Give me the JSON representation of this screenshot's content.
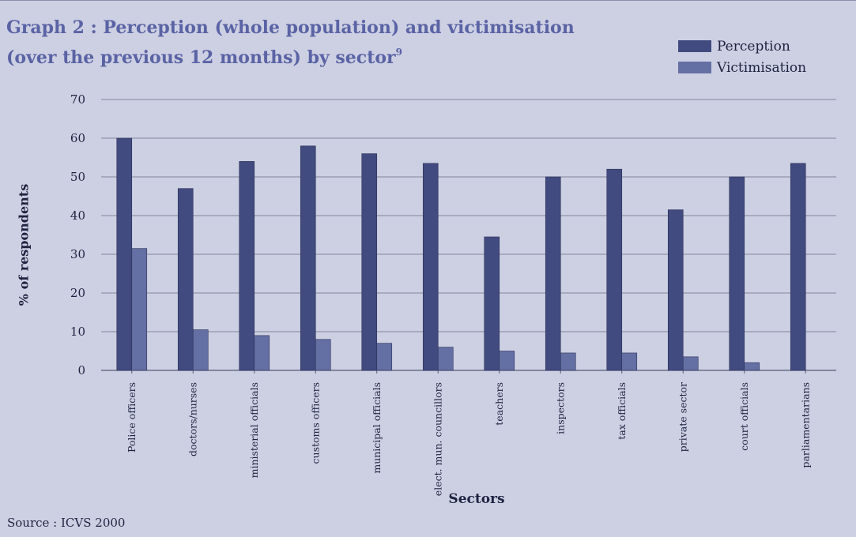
{
  "title_line1": "Graph 2 : Perception (whole population) and victimisation",
  "title_line2": "(over the previous 12 months) by sector",
  "title_note": "9",
  "source": "Source : ICVS 2000",
  "colors": {
    "perception": "#424b7f",
    "victimisation": "#646fa3",
    "gridline": "#9295ab",
    "background": "#cdd0e3",
    "title": "#5a63a4"
  },
  "chart_data": {
    "type": "bar",
    "xlabel": "Sectors",
    "ylabel": "% of respondents",
    "ylim": [
      0,
      70
    ],
    "yticks": [
      0,
      10,
      20,
      30,
      40,
      50,
      60,
      70
    ],
    "grid": true,
    "legend_position": "top-right",
    "categories": [
      "Police officers",
      "doctors/nurses",
      "ministerial officials",
      "customs officers",
      "municipal officials",
      "elect. mun. councillors",
      "teachers",
      "inspectors",
      "tax officials",
      "private sector",
      "court officials",
      "parliamentarians"
    ],
    "series": [
      {
        "name": "Perception",
        "values": [
          60,
          47,
          54,
          58,
          56,
          53.5,
          34.5,
          50,
          52,
          41.5,
          50,
          53.5
        ]
      },
      {
        "name": "Victimisation",
        "values": [
          31.5,
          10.5,
          9,
          8,
          7,
          6,
          5,
          4.5,
          4.5,
          3.5,
          2,
          0
        ]
      }
    ]
  }
}
